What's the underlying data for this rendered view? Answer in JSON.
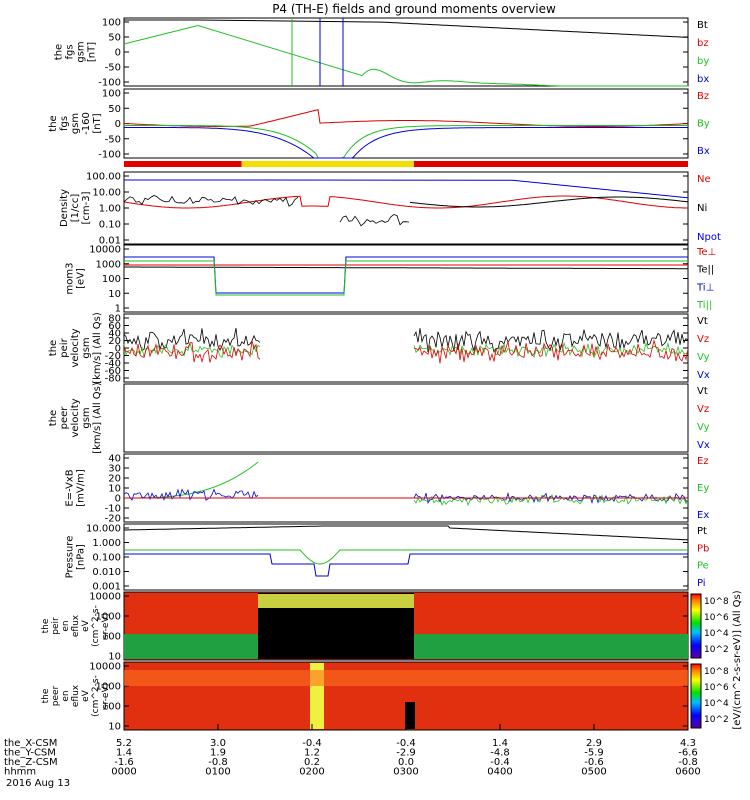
{
  "chart_data": {
    "type": "line",
    "title": "P4 (TH-E) fields and ground moments overview",
    "x_ticks": [
      "0000",
      "0100",
      "0200",
      "0300",
      "0400",
      "0500",
      "0600"
    ],
    "x_tick_rows": [
      {
        "label": "the_X-CSM",
        "values": [
          "5.2",
          "3.0",
          "-0.4",
          "-0.4",
          "1.4",
          "2.9",
          "4.3"
        ]
      },
      {
        "label": "the_Y-CSM",
        "values": [
          "1.4",
          "1.9",
          "1.2",
          "-2.9",
          "-4.8",
          "-5.9",
          "-6.6"
        ]
      },
      {
        "label": "the_Z-CSM",
        "values": [
          "-1.6",
          "-0.8",
          "0.2",
          "0.0",
          "-0.4",
          "-0.6",
          "-0.8"
        ]
      },
      {
        "label": "hhmm",
        "values": [
          "0000",
          "0100",
          "0200",
          "0300",
          "0400",
          "0500",
          "0600"
        ]
      }
    ],
    "date_label": "2016 Aug 13",
    "panels": [
      {
        "ylabel": [
          "the",
          "fgs",
          "gsm",
          "[nT]"
        ],
        "yticks": [
          "100",
          "50",
          "0",
          "-50",
          "-100"
        ],
        "legend": [
          {
            "text": "Bt",
            "color": "#000000"
          },
          {
            "text": "bz",
            "color": "#e00000"
          },
          {
            "text": "by",
            "color": "#20c020"
          },
          {
            "text": "bx",
            "color": "#0000e0"
          }
        ]
      },
      {
        "ylabel": [
          "the",
          "fgs",
          "gsm",
          "-160",
          "[nT]"
        ],
        "yticks": [
          "100",
          "50",
          "0",
          "-50",
          "-100"
        ],
        "legend": [
          {
            "text": "Bz",
            "color": "#e00000"
          },
          {
            "text": "By",
            "color": "#20c020"
          },
          {
            "text": "Bx",
            "color": "#0000e0"
          }
        ]
      },
      {
        "ylabel": [
          "Density",
          "[1/cc]",
          "[cm-3]"
        ],
        "yticks": [
          "100.00",
          "10.00",
          "1.00",
          "0.10",
          "0.01"
        ],
        "legend": [
          {
            "text": "Ne",
            "color": "#e00000"
          },
          {
            "text": "Ni",
            "color": "#000000"
          },
          {
            "text": "Npot",
            "color": "#0000e0"
          }
        ]
      },
      {
        "ylabel": [
          "mom3",
          "[eV]"
        ],
        "yticks": [
          "10000",
          "1000",
          "100",
          "10",
          "1"
        ],
        "legend": [
          {
            "text": "Te⊥",
            "color": "#e00000"
          },
          {
            "text": "Te||",
            "color": "#000000"
          },
          {
            "text": "Ti⊥",
            "color": "#0000e0"
          },
          {
            "text": "Ti||",
            "color": "#20c020"
          }
        ]
      },
      {
        "ylabel": [
          "the",
          "peir",
          "velocity",
          "gsm",
          "[km/s] (All Qs)"
        ],
        "yticks": [
          "80",
          "60",
          "40",
          "20",
          "0",
          "-20",
          "-40",
          "-60",
          "-80"
        ],
        "legend": [
          {
            "text": "Vt",
            "color": "#000000"
          },
          {
            "text": "Vz",
            "color": "#e00000"
          },
          {
            "text": "Vy",
            "color": "#20c020"
          },
          {
            "text": "Vx",
            "color": "#0000e0"
          }
        ]
      },
      {
        "ylabel": [
          "the",
          "peer",
          "velocity",
          "gsm",
          "[km/s] (All Qs)"
        ],
        "yticks": [],
        "legend": [
          {
            "text": "Vt",
            "color": "#000000"
          },
          {
            "text": "Vz",
            "color": "#e00000"
          },
          {
            "text": "Vy",
            "color": "#20c020"
          },
          {
            "text": "Vx",
            "color": "#0000e0"
          }
        ]
      },
      {
        "ylabel": [
          "E=-VxB",
          "[mV/m]"
        ],
        "yticks": [
          "40",
          "30",
          "20",
          "10",
          "0",
          "-10",
          "-20"
        ],
        "legend": [
          {
            "text": "Ez",
            "color": "#e00000"
          },
          {
            "text": "Ey",
            "color": "#20c020"
          },
          {
            "text": "Ex",
            "color": "#0000e0"
          }
        ]
      },
      {
        "ylabel": [
          "Pressure",
          "[nPa]"
        ],
        "yticks": [
          "10.000",
          "1.000",
          "0.100",
          "0.010",
          "0.001"
        ],
        "legend": [
          {
            "text": "Pt",
            "color": "#000000"
          },
          {
            "text": "Pb",
            "color": "#e00000"
          },
          {
            "text": "Pe",
            "color": "#20c020"
          },
          {
            "text": "Pi",
            "color": "#0000e0"
          }
        ]
      },
      {
        "ylabel": [
          "the",
          "peir",
          "en",
          "eflux",
          "eV",
          "(cm^2-s-",
          "sr-eV)"
        ],
        "yticks": [
          "10000",
          "1000",
          "100",
          "10"
        ],
        "legend": []
      },
      {
        "ylabel": [
          "the",
          "peer",
          "en",
          "eflux",
          "eV",
          "(cm^2-s-",
          "sr-eV)"
        ],
        "yticks": [
          "10000",
          "1000",
          "100",
          "10"
        ],
        "legend": []
      }
    ],
    "colorbar": {
      "label": "[eV/(cm^2-s-sr-eV)] (All Qs)",
      "ticks_top": [
        "10^8",
        "10^6",
        "10^4",
        "10^2"
      ],
      "ticks_bottom": [
        "10^8",
        "10^6",
        "10^4",
        "10^2"
      ]
    },
    "mode_bar": [
      {
        "from": "0000",
        "to": "0115",
        "color": "#e00000"
      },
      {
        "from": "0115",
        "to": "0305",
        "color": "#f0e000"
      },
      {
        "from": "0305",
        "to": "0600",
        "color": "#e00000"
      }
    ]
  }
}
